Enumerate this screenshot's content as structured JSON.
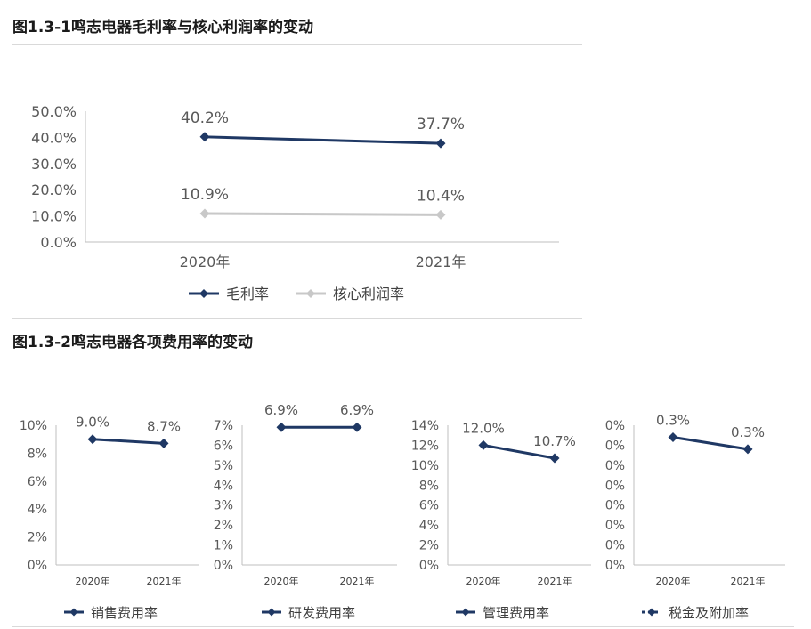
{
  "figure1": {
    "title": "图1.3-1鸣志电器毛利率与核心利润率的变动",
    "chart_data": {
      "type": "line",
      "categories": [
        "2020年",
        "2021年"
      ],
      "series": [
        {
          "name": "毛利率",
          "values": [
            40.2,
            37.7
          ],
          "labels": [
            "40.2%",
            "37.7%"
          ],
          "color": "#1f3864"
        },
        {
          "name": "核心利润率",
          "values": [
            10.9,
            10.4
          ],
          "labels": [
            "10.9%",
            "10.4%"
          ],
          "color": "#c8c8c8"
        }
      ],
      "yticks": [
        "0.0%",
        "10.0%",
        "20.0%",
        "30.0%",
        "40.0%",
        "50.0%"
      ],
      "ylim": [
        0,
        50
      ],
      "grid": false,
      "legend": "bottom"
    }
  },
  "figure2": {
    "title": "图1.3-2鸣志电器各项费用率的变动",
    "charts": [
      {
        "type": "line",
        "categories": [
          "2020年",
          "2021年"
        ],
        "series": [
          {
            "name": "销售费用率",
            "values": [
              9.0,
              8.7
            ],
            "labels": [
              "9.0%",
              "8.7%"
            ],
            "color": "#1f3864",
            "dashed": false
          }
        ],
        "yticks": [
          "0%",
          "2%",
          "4%",
          "6%",
          "8%",
          "10%"
        ],
        "ylim": [
          0,
          10
        ],
        "legend": "bottom"
      },
      {
        "type": "line",
        "categories": [
          "2020年",
          "2021年"
        ],
        "series": [
          {
            "name": "研发费用率",
            "values": [
              6.9,
              6.9
            ],
            "labels": [
              "6.9%",
              "6.9%"
            ],
            "color": "#1f3864",
            "dashed": false
          }
        ],
        "yticks": [
          "0%",
          "1%",
          "2%",
          "3%",
          "4%",
          "5%",
          "6%",
          "7%"
        ],
        "ylim": [
          0,
          7
        ],
        "legend": "bottom"
      },
      {
        "type": "line",
        "categories": [
          "2020年",
          "2021年"
        ],
        "series": [
          {
            "name": "管理费用率",
            "values": [
              12.0,
              10.7
            ],
            "labels": [
              "12.0%",
              "10.7%"
            ],
            "color": "#1f3864",
            "dashed": false
          }
        ],
        "yticks": [
          "0%",
          "2%",
          "4%",
          "6%",
          "8%",
          "10%",
          "12%",
          "14%"
        ],
        "ylim": [
          0,
          14
        ],
        "legend": "bottom"
      },
      {
        "type": "line",
        "categories": [
          "2020年",
          "2021年"
        ],
        "series": [
          {
            "name": "税金及附加率",
            "values": [
              0.32,
              0.29
            ],
            "labels": [
              "0.3%",
              "0.3%"
            ],
            "color": "#1f3864",
            "dashed": true
          }
        ],
        "yticks": [
          "0%",
          "0%",
          "0%",
          "0%",
          "0%",
          "0%",
          "0%",
          "0%"
        ],
        "ylim": [
          0,
          0.35
        ],
        "legend": "bottom"
      }
    ]
  }
}
